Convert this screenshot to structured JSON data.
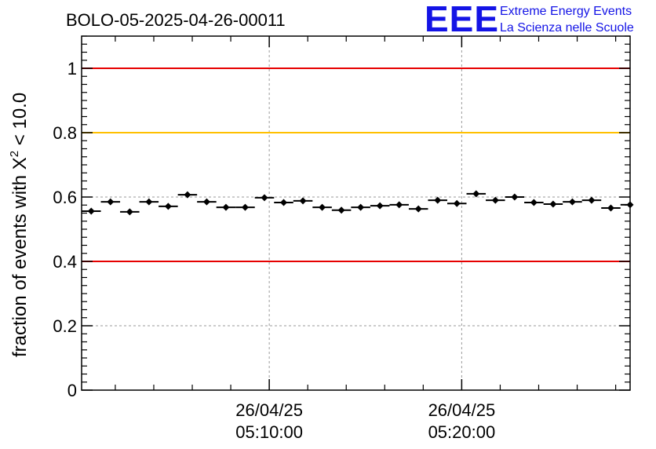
{
  "chart_data": {
    "type": "scatter",
    "title": "BOLO-05-2025-04-26-00011",
    "ylabel": {
      "prefix": "fraction of events with X",
      "superscript": "2",
      "suffix": " < 10.0"
    },
    "xlabel": "",
    "ylim": [
      0,
      1.1
    ],
    "yticks": [
      0,
      0.2,
      0.4,
      0.6,
      0.8,
      1
    ],
    "ytick_labels": [
      "0",
      "0.2",
      "0.4",
      "0.6",
      "0.8",
      "1"
    ],
    "xlim_minutes": [
      0,
      28.5
    ],
    "xticks": [
      {
        "x": 9.75,
        "date": "26/04/25",
        "time": "05:10:00"
      },
      {
        "x": 19.75,
        "date": "26/04/25",
        "time": "05:20:00"
      }
    ],
    "grid": true,
    "reference_lines": [
      {
        "y": 1.0,
        "color": "#e60000"
      },
      {
        "y": 0.8,
        "color": "#ffc000"
      },
      {
        "y": 0.4,
        "color": "#e60000"
      }
    ],
    "series": [
      {
        "x": [
          0.5,
          1.5,
          2.5,
          3.5,
          4.5,
          5.5,
          6.5,
          7.5,
          8.5,
          9.5,
          10.5,
          11.5,
          12.5,
          13.5,
          14.5,
          15.5,
          16.5,
          17.5,
          18.5,
          19.5,
          20.5,
          21.5,
          22.5,
          23.5,
          24.5,
          25.5,
          26.5,
          27.5,
          28.5
        ],
        "y": [
          0.556,
          0.585,
          0.554,
          0.585,
          0.571,
          0.607,
          0.585,
          0.568,
          0.568,
          0.598,
          0.583,
          0.588,
          0.568,
          0.559,
          0.568,
          0.573,
          0.576,
          0.563,
          0.59,
          0.58,
          0.61,
          0.59,
          0.6,
          0.583,
          0.578,
          0.585,
          0.59,
          0.566,
          0.576
        ],
        "xerr": 0.5,
        "yerr": 0.006,
        "color": "#000000"
      }
    ]
  },
  "logo": {
    "letters": "EEE",
    "line1": "Extreme Energy Events",
    "line2": "La Scienza nelle Scuole"
  }
}
